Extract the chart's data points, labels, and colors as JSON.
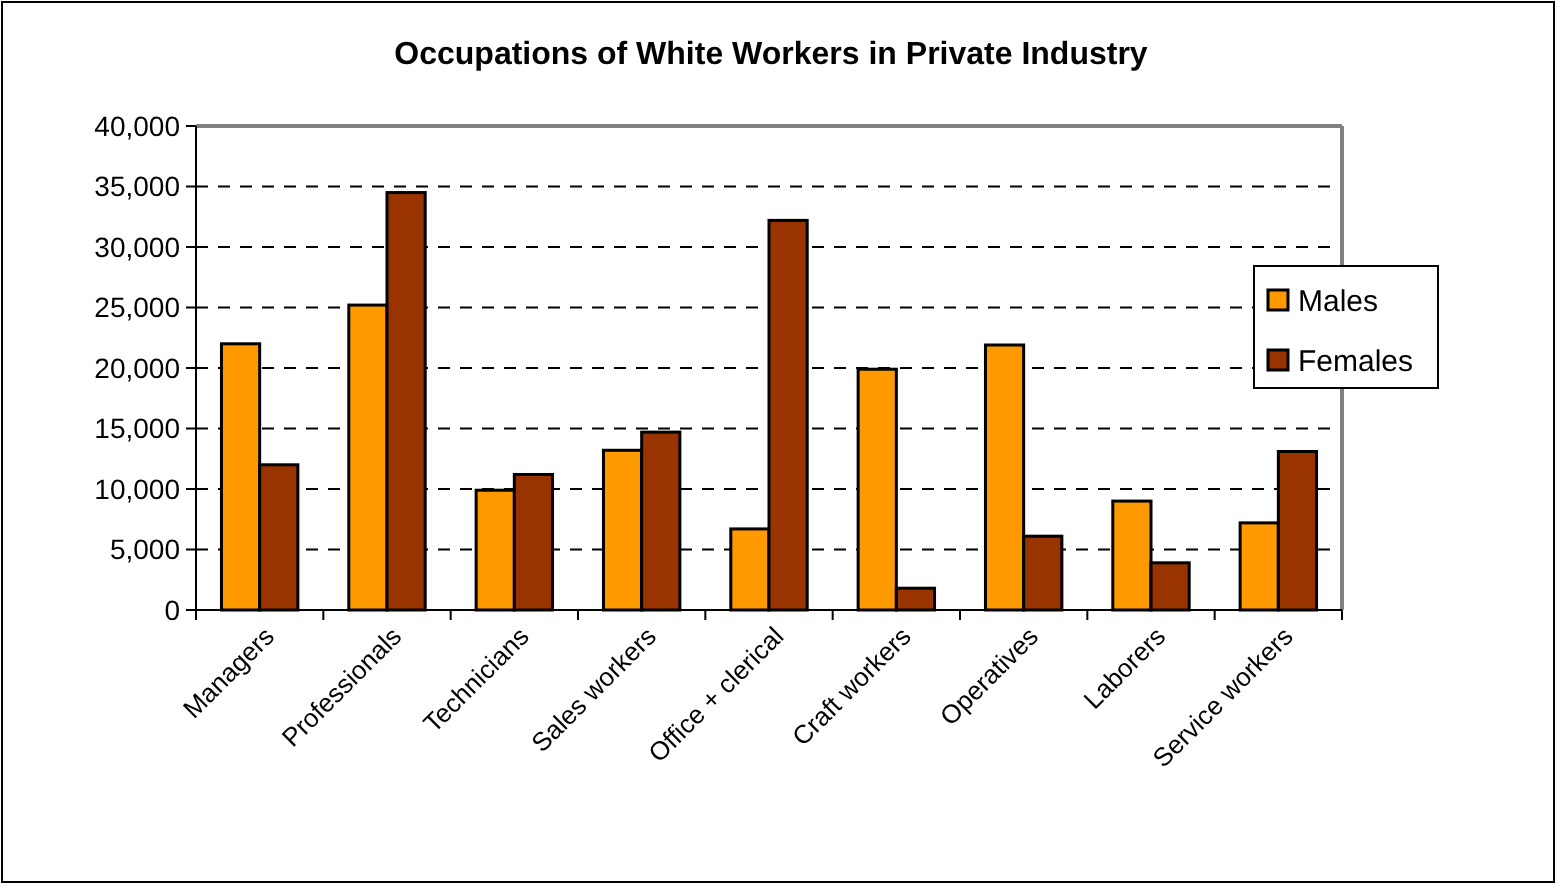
{
  "chart_data": {
    "type": "bar",
    "title": "Occupations of White Workers in Private Industry",
    "categories": [
      "Managers",
      "Professionals",
      "Technicians",
      "Sales workers",
      "Office + clerical",
      "Craft workers",
      "Operatives",
      "Laborers",
      "Service workers"
    ],
    "series": [
      {
        "name": "Males",
        "color": "#ff9900",
        "values": [
          22000,
          25200,
          9900,
          13200,
          6700,
          19900,
          21900,
          9000,
          7200
        ]
      },
      {
        "name": "Females",
        "color": "#993300",
        "values": [
          12000,
          34500,
          11200,
          14700,
          32200,
          1800,
          6100,
          3900,
          13100
        ]
      }
    ],
    "ylim": [
      0,
      40000
    ],
    "yticks": [
      {
        "value": 0,
        "label": "0"
      },
      {
        "value": 5000,
        "label": "5,000"
      },
      {
        "value": 10000,
        "label": "10,000"
      },
      {
        "value": 15000,
        "label": "15,000"
      },
      {
        "value": 20000,
        "label": "20,000"
      },
      {
        "value": 25000,
        "label": "25,000"
      },
      {
        "value": 30000,
        "label": "30,000"
      },
      {
        "value": 35000,
        "label": "35,000"
      },
      {
        "value": 40000,
        "label": "40,000"
      }
    ],
    "grid": "y",
    "legend": "right"
  }
}
